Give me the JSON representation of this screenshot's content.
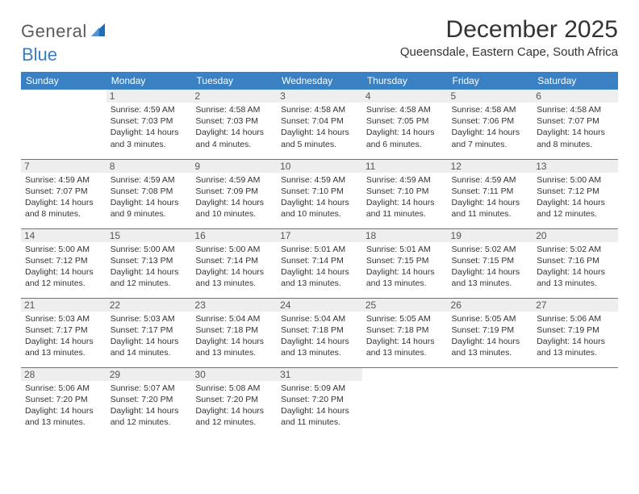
{
  "brand": {
    "name1": "General",
    "name2": "Blue",
    "icon_color": "#1f6bb5"
  },
  "title": "December 2025",
  "location": "Queensdale, Eastern Cape, South Africa",
  "colors": {
    "header_bg": "#3a81c4",
    "header_text": "#ffffff",
    "daynum_bg": "#eeeeee",
    "body_text": "#333333",
    "rule": "#3a81c4"
  },
  "day_headers": [
    "Sunday",
    "Monday",
    "Tuesday",
    "Wednesday",
    "Thursday",
    "Friday",
    "Saturday"
  ],
  "weeks": [
    [
      null,
      {
        "n": "1",
        "sr": "4:59 AM",
        "ss": "7:03 PM",
        "dl": "14 hours and 3 minutes."
      },
      {
        "n": "2",
        "sr": "4:58 AM",
        "ss": "7:03 PM",
        "dl": "14 hours and 4 minutes."
      },
      {
        "n": "3",
        "sr": "4:58 AM",
        "ss": "7:04 PM",
        "dl": "14 hours and 5 minutes."
      },
      {
        "n": "4",
        "sr": "4:58 AM",
        "ss": "7:05 PM",
        "dl": "14 hours and 6 minutes."
      },
      {
        "n": "5",
        "sr": "4:58 AM",
        "ss": "7:06 PM",
        "dl": "14 hours and 7 minutes."
      },
      {
        "n": "6",
        "sr": "4:58 AM",
        "ss": "7:07 PM",
        "dl": "14 hours and 8 minutes."
      }
    ],
    [
      {
        "n": "7",
        "sr": "4:59 AM",
        "ss": "7:07 PM",
        "dl": "14 hours and 8 minutes."
      },
      {
        "n": "8",
        "sr": "4:59 AM",
        "ss": "7:08 PM",
        "dl": "14 hours and 9 minutes."
      },
      {
        "n": "9",
        "sr": "4:59 AM",
        "ss": "7:09 PM",
        "dl": "14 hours and 10 minutes."
      },
      {
        "n": "10",
        "sr": "4:59 AM",
        "ss": "7:10 PM",
        "dl": "14 hours and 10 minutes."
      },
      {
        "n": "11",
        "sr": "4:59 AM",
        "ss": "7:10 PM",
        "dl": "14 hours and 11 minutes."
      },
      {
        "n": "12",
        "sr": "4:59 AM",
        "ss": "7:11 PM",
        "dl": "14 hours and 11 minutes."
      },
      {
        "n": "13",
        "sr": "5:00 AM",
        "ss": "7:12 PM",
        "dl": "14 hours and 12 minutes."
      }
    ],
    [
      {
        "n": "14",
        "sr": "5:00 AM",
        "ss": "7:12 PM",
        "dl": "14 hours and 12 minutes."
      },
      {
        "n": "15",
        "sr": "5:00 AM",
        "ss": "7:13 PM",
        "dl": "14 hours and 12 minutes."
      },
      {
        "n": "16",
        "sr": "5:00 AM",
        "ss": "7:14 PM",
        "dl": "14 hours and 13 minutes."
      },
      {
        "n": "17",
        "sr": "5:01 AM",
        "ss": "7:14 PM",
        "dl": "14 hours and 13 minutes."
      },
      {
        "n": "18",
        "sr": "5:01 AM",
        "ss": "7:15 PM",
        "dl": "14 hours and 13 minutes."
      },
      {
        "n": "19",
        "sr": "5:02 AM",
        "ss": "7:15 PM",
        "dl": "14 hours and 13 minutes."
      },
      {
        "n": "20",
        "sr": "5:02 AM",
        "ss": "7:16 PM",
        "dl": "14 hours and 13 minutes."
      }
    ],
    [
      {
        "n": "21",
        "sr": "5:03 AM",
        "ss": "7:17 PM",
        "dl": "14 hours and 13 minutes."
      },
      {
        "n": "22",
        "sr": "5:03 AM",
        "ss": "7:17 PM",
        "dl": "14 hours and 14 minutes."
      },
      {
        "n": "23",
        "sr": "5:04 AM",
        "ss": "7:18 PM",
        "dl": "14 hours and 13 minutes."
      },
      {
        "n": "24",
        "sr": "5:04 AM",
        "ss": "7:18 PM",
        "dl": "14 hours and 13 minutes."
      },
      {
        "n": "25",
        "sr": "5:05 AM",
        "ss": "7:18 PM",
        "dl": "14 hours and 13 minutes."
      },
      {
        "n": "26",
        "sr": "5:05 AM",
        "ss": "7:19 PM",
        "dl": "14 hours and 13 minutes."
      },
      {
        "n": "27",
        "sr": "5:06 AM",
        "ss": "7:19 PM",
        "dl": "14 hours and 13 minutes."
      }
    ],
    [
      {
        "n": "28",
        "sr": "5:06 AM",
        "ss": "7:20 PM",
        "dl": "14 hours and 13 minutes."
      },
      {
        "n": "29",
        "sr": "5:07 AM",
        "ss": "7:20 PM",
        "dl": "14 hours and 12 minutes."
      },
      {
        "n": "30",
        "sr": "5:08 AM",
        "ss": "7:20 PM",
        "dl": "14 hours and 12 minutes."
      },
      {
        "n": "31",
        "sr": "5:09 AM",
        "ss": "7:20 PM",
        "dl": "14 hours and 11 minutes."
      },
      null,
      null,
      null
    ]
  ],
  "labels": {
    "sunrise": "Sunrise:",
    "sunset": "Sunset:",
    "daylight": "Daylight:"
  }
}
